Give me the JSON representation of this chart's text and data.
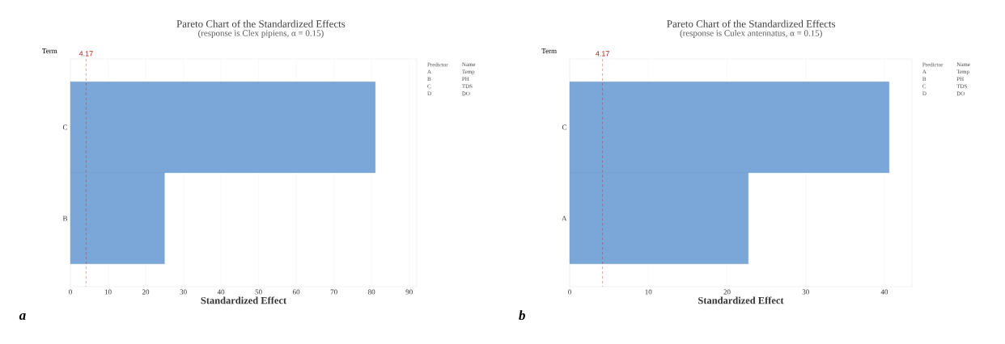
{
  "chart_data": [
    {
      "type": "bar",
      "orientation": "horizontal",
      "title": "Pareto Chart of the Standardized Effects",
      "subtitle": "(response is Clex pipiens, α = 0.15)",
      "xlabel": "Standardized Effect",
      "ylabel": "Term",
      "categories": [
        "C",
        "B"
      ],
      "values": [
        81,
        25
      ],
      "color": "#7ba7d8",
      "xlim": [
        0,
        92
      ],
      "xticks": [
        0,
        10,
        20,
        30,
        40,
        50,
        60,
        70,
        80,
        90
      ],
      "grid": "x",
      "ref_lines": [
        {
          "axis": "x",
          "value": 4.17,
          "label": "4.17",
          "color": "#b22222",
          "line_style": "dashed"
        }
      ],
      "annotations": [
        "Predictor",
        "Name",
        "A",
        "Temp",
        "B",
        "PH",
        "C",
        "TDS",
        "D",
        "DO",
        "a"
      ]
    },
    {
      "type": "bar",
      "orientation": "horizontal",
      "title": "Pareto Chart of the Standardized Effects",
      "subtitle": "(response is Culex antennatus, α = 0.15)",
      "xlabel": "Standardized Effect",
      "ylabel": "Term",
      "categories": [
        "C",
        "A"
      ],
      "values": [
        40.6,
        22.7
      ],
      "color": "#7ba7d8",
      "xlim": [
        0,
        43.5
      ],
      "xticks": [
        0,
        10,
        20,
        30,
        40
      ],
      "grid": "x",
      "ref_lines": [
        {
          "axis": "x",
          "value": 4.17,
          "label": "4.17",
          "color": "#b22222",
          "line_style": "dashed"
        }
      ],
      "annotations": [
        "Predictor",
        "Name",
        "A",
        "Temp",
        "B",
        "PH",
        "C",
        "TDS",
        "D",
        "DO",
        "b"
      ]
    }
  ]
}
